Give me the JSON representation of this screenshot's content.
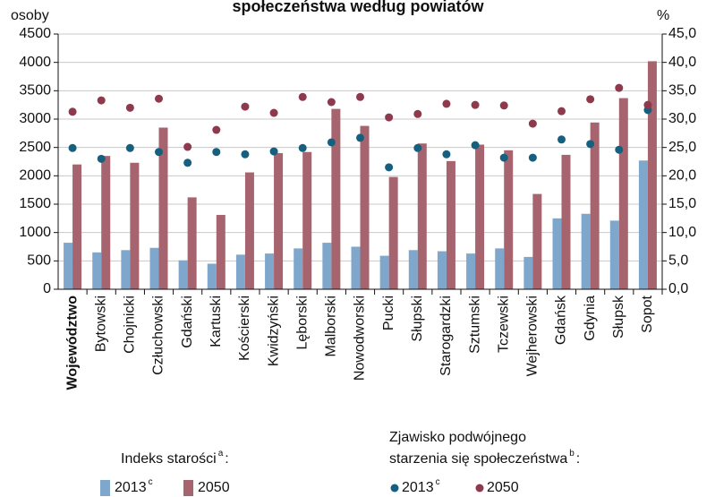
{
  "chart_data": {
    "type": "bar",
    "title": "społeczeństwa według powiatów",
    "y_label": "osoby",
    "y2_label": "%",
    "categories": [
      "Województwo",
      "Bytowski",
      "Chojnicki",
      "Człuchowski",
      "Gdański",
      "Kartuski",
      "Kościerski",
      "Kwidzyński",
      "Lęborski",
      "Malborski",
      "Nowodworski",
      "Pucki",
      "Słupski",
      "Starogardzki",
      "Sztumski",
      "Tczewski",
      "Wejherowski",
      "Gdańsk",
      "Gdynia",
      "Słupsk",
      "Sopot"
    ],
    "series": [
      {
        "name": "2013",
        "sup": "c",
        "color": "#7fa7cc",
        "type": "bar",
        "values": [
          820,
          650,
          690,
          730,
          510,
          450,
          610,
          630,
          720,
          820,
          750,
          590,
          690,
          670,
          630,
          720,
          570,
          1250,
          1330,
          1210,
          2270
        ]
      },
      {
        "name": "2050",
        "color": "#a6646e",
        "type": "bar",
        "values": [
          2200,
          2350,
          2230,
          2850,
          1620,
          1310,
          2060,
          2400,
          2420,
          3180,
          2880,
          1980,
          2570,
          2260,
          2550,
          2450,
          1680,
          2370,
          2940,
          3370,
          4020
        ]
      },
      {
        "name": "2013",
        "sup": "c",
        "color": "#15607f",
        "type": "scatter",
        "axis": "y2",
        "values": [
          24.9,
          23.0,
          24.9,
          24.2,
          22.3,
          24.2,
          23.8,
          24.3,
          24.9,
          25.9,
          26.7,
          21.5,
          24.9,
          23.8,
          25.4,
          23.2,
          23.2,
          26.4,
          25.6,
          24.6,
          31.6
        ]
      },
      {
        "name": "2050",
        "color": "#8e3a4c",
        "type": "scatter",
        "axis": "y2",
        "values": [
          31.3,
          33.3,
          32.0,
          33.6,
          25.1,
          28.1,
          32.2,
          31.1,
          33.9,
          33.0,
          33.9,
          30.3,
          30.9,
          32.7,
          32.5,
          32.4,
          29.2,
          31.4,
          33.5,
          35.5,
          32.5
        ]
      }
    ],
    "legend_groups": [
      {
        "title": [
          "Indeks starości"
        ],
        "sup": "a",
        "suffix": ":"
      },
      {
        "title": [
          "Zjawisko podwójnego",
          "starzenia się społeczeństwa"
        ],
        "sup": "b",
        "suffix": ":"
      }
    ],
    "ylim": [
      0,
      4500
    ],
    "yticks": [
      0,
      500,
      1000,
      1500,
      2000,
      2500,
      3000,
      3500,
      4000,
      4500
    ],
    "y2lim": [
      0,
      45
    ],
    "y2ticks": [
      {
        "value": 0,
        "label": "0,0"
      },
      {
        "value": 5,
        "label": "5,0"
      },
      {
        "value": 10,
        "label": "10,0"
      },
      {
        "value": 15,
        "label": "15,0"
      },
      {
        "value": 20,
        "label": "20,0"
      },
      {
        "value": 25,
        "label": "25,0"
      },
      {
        "value": 30,
        "label": "30,0"
      },
      {
        "value": 35,
        "label": "35,0"
      },
      {
        "value": 40,
        "label": "40,0"
      },
      {
        "value": 45,
        "label": "45,0"
      }
    ],
    "grid": true
  }
}
